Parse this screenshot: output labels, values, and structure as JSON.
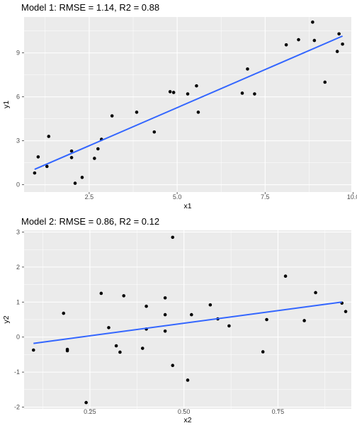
{
  "chart_data": [
    {
      "type": "scatter",
      "title": "Model 1: RMSE = 1.14, R2 = 0.88",
      "xlabel": "x1",
      "ylabel": "y1",
      "xlim": [
        0.65,
        9.95
      ],
      "ylim": [
        -0.5,
        11.45
      ],
      "xticks": [
        2.5,
        5.0,
        7.5,
        10.0
      ],
      "xtick_labels": [
        "2.5",
        "5.0",
        "7.5",
        "10.0"
      ],
      "yticks": [
        0,
        3,
        6,
        9
      ],
      "ytick_labels": [
        "0",
        "3",
        "6",
        "9"
      ],
      "grid": true,
      "points": [
        [
          0.95,
          0.8
        ],
        [
          1.05,
          1.9
        ],
        [
          1.3,
          1.25
        ],
        [
          1.35,
          3.3
        ],
        [
          2.0,
          1.85
        ],
        [
          2.0,
          2.3
        ],
        [
          2.1,
          0.1
        ],
        [
          2.3,
          0.5
        ],
        [
          2.65,
          1.8
        ],
        [
          2.75,
          2.45
        ],
        [
          2.85,
          3.1
        ],
        [
          3.15,
          4.7
        ],
        [
          3.85,
          4.95
        ],
        [
          4.35,
          3.6
        ],
        [
          4.8,
          6.35
        ],
        [
          4.9,
          6.3
        ],
        [
          5.3,
          6.2
        ],
        [
          5.55,
          6.75
        ],
        [
          5.6,
          4.95
        ],
        [
          6.85,
          6.25
        ],
        [
          7.0,
          7.9
        ],
        [
          7.2,
          6.2
        ],
        [
          8.1,
          9.55
        ],
        [
          8.45,
          9.9
        ],
        [
          8.85,
          11.1
        ],
        [
          8.9,
          9.85
        ],
        [
          9.2,
          7.0
        ],
        [
          9.55,
          9.1
        ],
        [
          9.6,
          10.3
        ],
        [
          9.7,
          9.6
        ]
      ],
      "fit_line": {
        "x": [
          0.95,
          9.7
        ],
        "y": [
          1.05,
          10.15
        ]
      },
      "colors": {
        "points": "#000000",
        "line": "#3366ff",
        "panel": "#ebebeb",
        "grid": "#ffffff"
      }
    },
    {
      "type": "scatter",
      "title": "Model 2: RMSE = 0.86, R2 = 0.12",
      "xlabel": "x2",
      "ylabel": "y2",
      "xlim": [
        0.075,
        0.945
      ],
      "ylim": [
        -2.05,
        3.05
      ],
      "xticks": [
        0.25,
        0.5,
        0.75
      ],
      "xtick_labels": [
        "0.25",
        "0.50",
        "0.75"
      ],
      "yticks": [
        -2,
        -1,
        0,
        1,
        2,
        3
      ],
      "ytick_labels": [
        "-2",
        "-1",
        "0",
        "1",
        "2",
        "3"
      ],
      "grid": true,
      "points": [
        [
          0.1,
          -0.37
        ],
        [
          0.18,
          0.68
        ],
        [
          0.19,
          -0.35
        ],
        [
          0.19,
          -0.39
        ],
        [
          0.24,
          -1.87
        ],
        [
          0.28,
          1.25
        ],
        [
          0.3,
          0.27
        ],
        [
          0.32,
          -0.25
        ],
        [
          0.33,
          -0.43
        ],
        [
          0.34,
          1.18
        ],
        [
          0.39,
          -0.32
        ],
        [
          0.4,
          0.88
        ],
        [
          0.4,
          0.23
        ],
        [
          0.45,
          1.12
        ],
        [
          0.45,
          0.64
        ],
        [
          0.45,
          0.17
        ],
        [
          0.47,
          2.85
        ],
        [
          0.47,
          -0.81
        ],
        [
          0.51,
          -1.23
        ],
        [
          0.52,
          0.64
        ],
        [
          0.57,
          0.92
        ],
        [
          0.59,
          0.52
        ],
        [
          0.62,
          0.32
        ],
        [
          0.71,
          -0.42
        ],
        [
          0.72,
          0.5
        ],
        [
          0.77,
          1.74
        ],
        [
          0.82,
          0.47
        ],
        [
          0.85,
          1.27
        ],
        [
          0.92,
          0.97
        ],
        [
          0.93,
          0.73
        ]
      ],
      "fit_line": {
        "x": [
          0.1,
          0.92
        ],
        "y": [
          -0.18,
          1.0
        ]
      },
      "colors": {
        "points": "#000000",
        "line": "#3366ff",
        "panel": "#ebebeb",
        "grid": "#ffffff"
      }
    }
  ]
}
